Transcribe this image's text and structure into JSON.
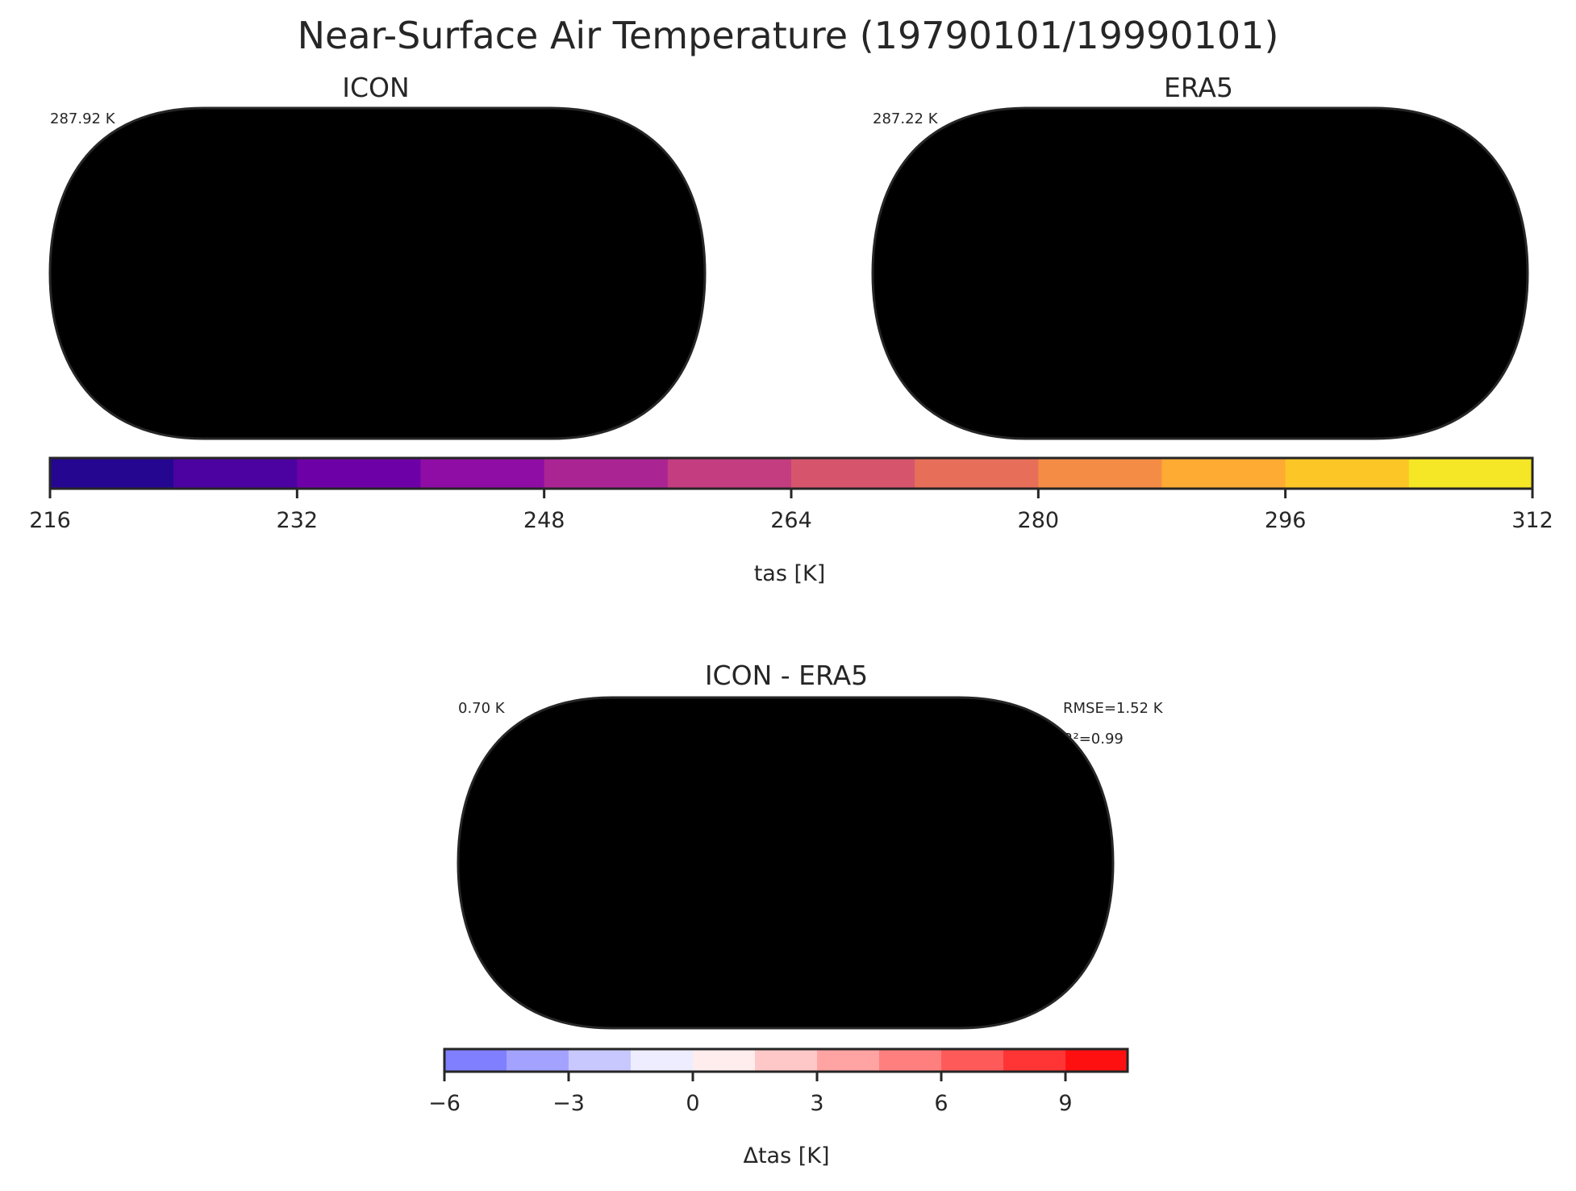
{
  "figure": {
    "title": "Near-Surface Air Temperature (19790101/19990101)"
  },
  "panels": [
    {
      "id": "icon",
      "title": "ICON",
      "global_mean": "287.92 K",
      "colormap": "plasma"
    },
    {
      "id": "era5",
      "title": "ERA5",
      "global_mean": "287.22 K",
      "colormap": "plasma"
    },
    {
      "id": "diff",
      "title": "ICON - ERA5",
      "global_mean": "0.70 K",
      "rmse": "RMSE=1.52 K",
      "r2": "R²=0.99",
      "colormap": "bwr"
    }
  ],
  "colorbars": [
    {
      "id": "abs",
      "label": "tas [K]",
      "range": [
        216,
        312
      ],
      "ticks": [
        "216",
        "232",
        "248",
        "264",
        "280",
        "296",
        "312"
      ],
      "colors": [
        "#240691",
        "#4c02a1",
        "#6e00a8",
        "#8f0da4",
        "#ab2494",
        "#c33d80",
        "#d6556d",
        "#e76f5a",
        "#f58c46",
        "#fdab33",
        "#fcc726",
        "#f5e626"
      ]
    },
    {
      "id": "diff",
      "label": "Δtas [K]",
      "range": [
        -6,
        10.5
      ],
      "ticks": [
        "−6",
        "−3",
        "0",
        "3",
        "6",
        "9"
      ],
      "colors": [
        "#7f7fff",
        "#a3a3ff",
        "#c8c8ff",
        "#ededff",
        "#ffeded",
        "#ffc8c8",
        "#ffa3a3",
        "#ff7f7f",
        "#ff5a5a",
        "#ff3535",
        "#ff1010"
      ]
    }
  ],
  "chart_data": {
    "type": "heatmap",
    "variable": "tas",
    "units": "K",
    "period": "19790101/19990101",
    "maps": [
      {
        "title": "ICON",
        "global_mean": 287.92
      },
      {
        "title": "ERA5",
        "global_mean": 287.22
      },
      {
        "title": "ICON - ERA5",
        "global_mean": 0.7,
        "rmse": 1.52,
        "r2": 0.99
      }
    ],
    "colorbar_abs": {
      "label": "tas [K]",
      "vmin": 216,
      "vmax": 312,
      "ticks": [
        216,
        232,
        248,
        264,
        280,
        296,
        312
      ]
    },
    "colorbar_diff": {
      "label": "Δtas [K]",
      "vmin": -6,
      "vmax": 10.5,
      "ticks": [
        -6,
        -3,
        0,
        3,
        6,
        9
      ]
    }
  }
}
